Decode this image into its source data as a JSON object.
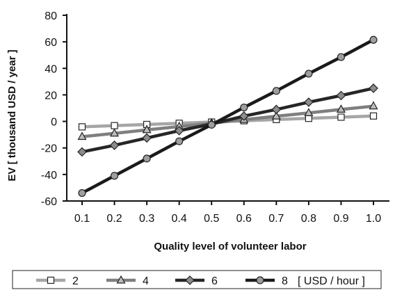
{
  "chart_data": {
    "type": "line",
    "xlabel": "Quality level of volunteer labor",
    "ylabel": "EV [ thousand USD / year ]",
    "x": [
      0.1,
      0.2,
      0.3,
      0.4,
      0.5,
      0.6,
      0.7,
      0.8,
      0.9,
      1.0
    ],
    "x_tick_labels": [
      "0.1",
      "0.2",
      "0.3",
      "0.4",
      "0.5",
      "0.6",
      "0.7",
      "0.8",
      "0.9",
      "1.0"
    ],
    "ylim": [
      -60,
      80
    ],
    "y_ticks": [
      -60,
      -40,
      -20,
      0,
      20,
      40,
      60,
      80
    ],
    "y_tick_labels": [
      "-60",
      "-40",
      "-20",
      "0",
      "20",
      "40",
      "60",
      "80"
    ],
    "grid": false,
    "legend_position": "bottom",
    "legend_unit": "[ USD / hour ]",
    "series": [
      {
        "name": "2",
        "marker": "square",
        "color": "#a6a6a6",
        "values": [
          -4.1,
          -3.2,
          -2.3,
          -1.4,
          -0.5,
          0.5,
          1.4,
          2.3,
          3.2,
          4.1
        ]
      },
      {
        "name": "4",
        "marker": "triangle",
        "color": "#7f7f7f",
        "values": [
          -11.5,
          -9.0,
          -6.4,
          -3.9,
          -1.3,
          1.3,
          3.9,
          6.4,
          9.0,
          11.5
        ]
      },
      {
        "name": "6",
        "marker": "diamond",
        "color": "#262626",
        "values": [
          -23.0,
          -18.0,
          -12.5,
          -7.0,
          -2.0,
          4.0,
          9.0,
          14.5,
          19.5,
          25.0
        ]
      },
      {
        "name": "8",
        "marker": "circle",
        "color": "#1a1a1a",
        "values": [
          -54.0,
          -41.0,
          -28.0,
          -15.0,
          -2.5,
          10.5,
          23.0,
          36.0,
          48.5,
          61.5
        ]
      }
    ]
  }
}
